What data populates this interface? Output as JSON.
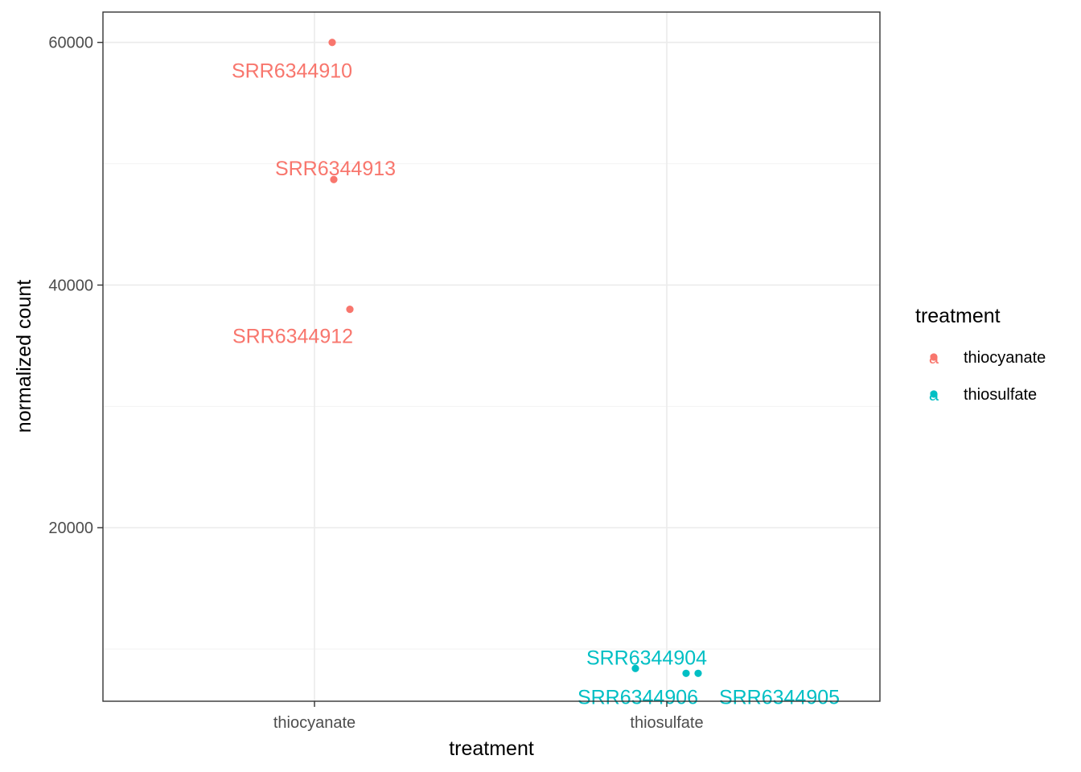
{
  "chart_data": {
    "type": "scatter",
    "xlabel": "treatment",
    "ylabel": "normalized count",
    "categories": [
      "thiocyanate",
      "thiosulfate"
    ],
    "y_ticks": [
      20000,
      40000,
      60000
    ],
    "ylim": [
      5700,
      62500
    ],
    "grid": true,
    "legend": {
      "title": "treatment",
      "position": "right",
      "glyph": "a",
      "entries": [
        {
          "name": "thiocyanate",
          "color": "#F8766D"
        },
        {
          "name": "thiosulfate",
          "color": "#00BFC4"
        }
      ]
    },
    "points": [
      {
        "label": "SRR6344910",
        "category": "thiocyanate",
        "y": 60000,
        "color": "#F8766D"
      },
      {
        "label": "SRR6344913",
        "category": "thiocyanate",
        "y": 48700,
        "color": "#F8766D"
      },
      {
        "label": "SRR6344912",
        "category": "thiocyanate",
        "y": 38000,
        "color": "#F8766D"
      },
      {
        "label": "SRR6344904",
        "category": "thiosulfate",
        "y": 8400,
        "color": "#00BFC4"
      },
      {
        "label": "SRR6344906",
        "category": "thiosulfate",
        "y": 8000,
        "color": "#00BFC4"
      },
      {
        "label": "SRR6344905",
        "category": "thiosulfate",
        "y": 8000,
        "color": "#00BFC4"
      }
    ]
  }
}
